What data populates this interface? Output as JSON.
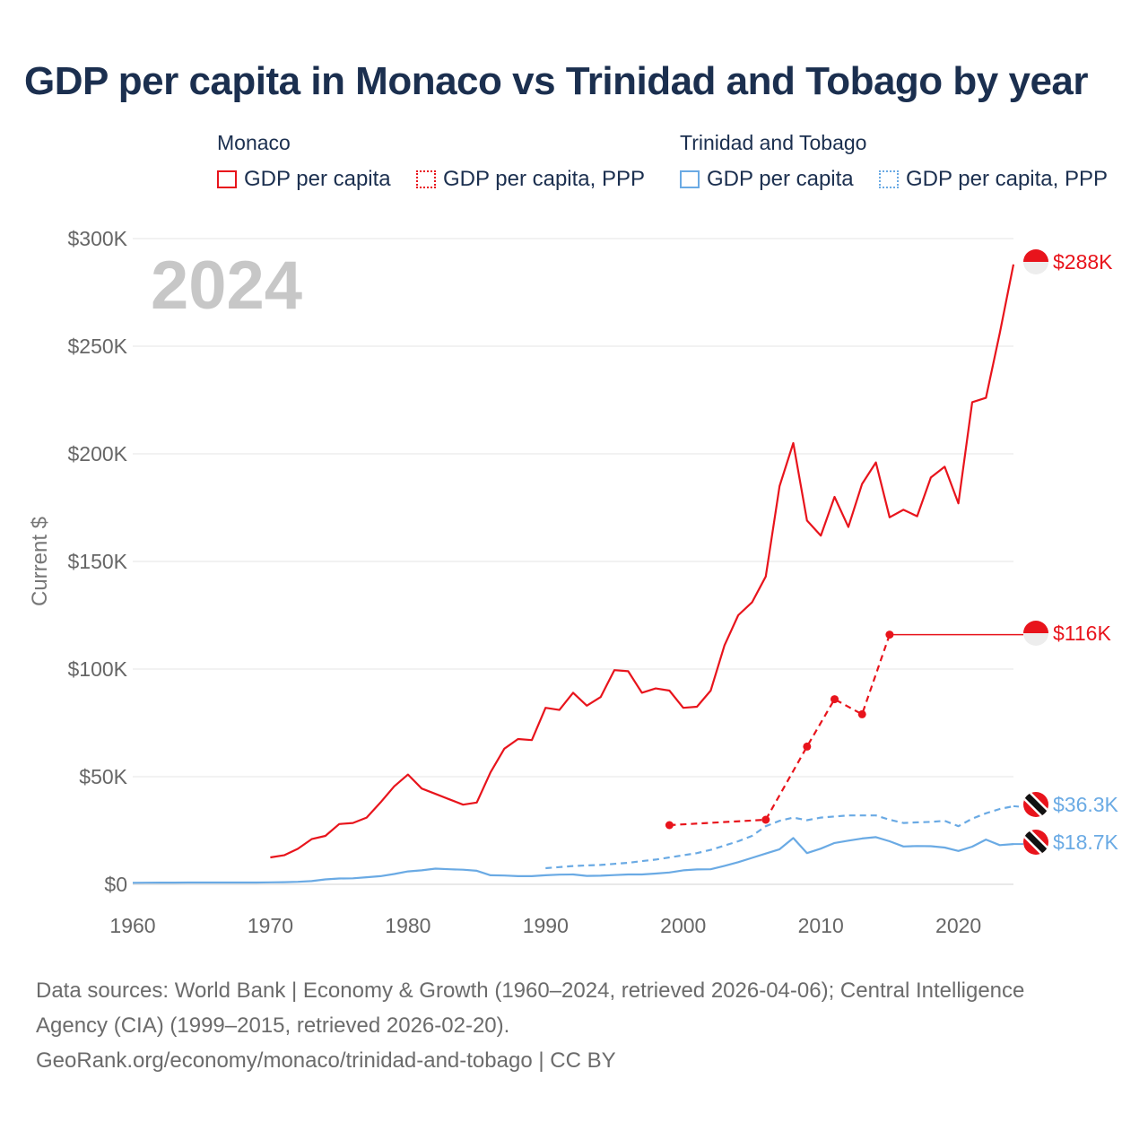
{
  "title": "GDP per capita in Monaco vs Trinidad and Tobago by year",
  "legend": {
    "groups": [
      {
        "title": "Monaco",
        "items": [
          {
            "label": "GDP per capita",
            "style": "solid",
            "color": "#e8141c"
          },
          {
            "label": "GDP per capita, PPP",
            "style": "dotted",
            "color": "#e8141c"
          }
        ]
      },
      {
        "title": "Trinidad and Tobago",
        "items": [
          {
            "label": "GDP per capita",
            "style": "solid",
            "color": "#6aaae4"
          },
          {
            "label": "GDP per capita, PPP",
            "style": "dotted",
            "color": "#6aaae4"
          }
        ]
      }
    ]
  },
  "year_label": "2024",
  "colors": {
    "monaco": "#e8141c",
    "tt": "#6aaae4",
    "grid": "#e6e6e6",
    "axis_text": "#666666",
    "year_label": "#c7c7c7"
  },
  "chart_data": {
    "type": "line",
    "ylabel": "Current $",
    "xlim": [
      1960,
      2024
    ],
    "ylim": [
      0,
      300000
    ],
    "x_ticks": [
      1960,
      1970,
      1980,
      1990,
      2000,
      2010,
      2020
    ],
    "x_tick_labels": [
      "1960",
      "1970",
      "1980",
      "1990",
      "2000",
      "2010",
      "2020"
    ],
    "y_ticks": [
      0,
      50000,
      100000,
      150000,
      200000,
      250000,
      300000
    ],
    "y_tick_labels": [
      "$0",
      "$50K",
      "$100K",
      "$150K",
      "$200K",
      "$250K",
      "$300K"
    ],
    "series": [
      {
        "name": "Monaco GDP per capita",
        "color": "#e8141c",
        "dash": "solid",
        "markers": false,
        "end_label": "$288K",
        "points": [
          [
            1970,
            12500
          ],
          [
            1971,
            13500
          ],
          [
            1972,
            16500
          ],
          [
            1973,
            21000
          ],
          [
            1974,
            22500
          ],
          [
            1975,
            28000
          ],
          [
            1976,
            28500
          ],
          [
            1977,
            31000
          ],
          [
            1978,
            38000
          ],
          [
            1979,
            45500
          ],
          [
            1980,
            51000
          ],
          [
            1981,
            44500
          ],
          [
            1982,
            42000
          ],
          [
            1983,
            39500
          ],
          [
            1984,
            37000
          ],
          [
            1985,
            38000
          ],
          [
            1986,
            52000
          ],
          [
            1987,
            63000
          ],
          [
            1988,
            67500
          ],
          [
            1989,
            67000
          ],
          [
            1990,
            82000
          ],
          [
            1991,
            81000
          ],
          [
            1992,
            89000
          ],
          [
            1993,
            83000
          ],
          [
            1994,
            87000
          ],
          [
            1995,
            99500
          ],
          [
            1996,
            99000
          ],
          [
            1997,
            89000
          ],
          [
            1998,
            91000
          ],
          [
            1999,
            90000
          ],
          [
            2000,
            82000
          ],
          [
            2001,
            82500
          ],
          [
            2002,
            90000
          ],
          [
            2003,
            111000
          ],
          [
            2004,
            125000
          ],
          [
            2005,
            131000
          ],
          [
            2006,
            143000
          ],
          [
            2007,
            185000
          ],
          [
            2008,
            205000
          ],
          [
            2009,
            169000
          ],
          [
            2010,
            162000
          ],
          [
            2011,
            180000
          ],
          [
            2012,
            166000
          ],
          [
            2013,
            186000
          ],
          [
            2014,
            196000
          ],
          [
            2015,
            170500
          ],
          [
            2016,
            174000
          ],
          [
            2017,
            171000
          ],
          [
            2018,
            189000
          ],
          [
            2019,
            194000
          ],
          [
            2020,
            177000
          ],
          [
            2021,
            224000
          ],
          [
            2022,
            226000
          ],
          [
            2023,
            256000
          ],
          [
            2024,
            288000
          ]
        ]
      },
      {
        "name": "Monaco GDP per capita, PPP",
        "color": "#e8141c",
        "dash": "dashed",
        "markers": true,
        "end_label": "$116K",
        "points": [
          [
            1999,
            27500
          ],
          [
            2006,
            30000
          ],
          [
            2009,
            64000
          ],
          [
            2011,
            86000
          ],
          [
            2013,
            79000
          ],
          [
            2015,
            116000
          ]
        ]
      },
      {
        "name": "Trinidad and Tobago GDP per capita, PPP",
        "color": "#6aaae4",
        "dash": "dashed",
        "markers": false,
        "end_label": "$36.3K",
        "points": [
          [
            1990,
            7500
          ],
          [
            1991,
            8000
          ],
          [
            1992,
            8500
          ],
          [
            1993,
            8800
          ],
          [
            1994,
            9000
          ],
          [
            1995,
            9500
          ],
          [
            1996,
            10000
          ],
          [
            1997,
            10800
          ],
          [
            1998,
            11500
          ],
          [
            1999,
            12500
          ],
          [
            2000,
            13500
          ],
          [
            2001,
            14500
          ],
          [
            2002,
            16000
          ],
          [
            2003,
            18000
          ],
          [
            2004,
            20000
          ],
          [
            2005,
            22500
          ],
          [
            2006,
            27000
          ],
          [
            2007,
            29500
          ],
          [
            2008,
            31000
          ],
          [
            2009,
            29800
          ],
          [
            2010,
            31000
          ],
          [
            2011,
            31500
          ],
          [
            2012,
            32000
          ],
          [
            2013,
            32000
          ],
          [
            2014,
            32000
          ],
          [
            2015,
            30000
          ],
          [
            2016,
            28500
          ],
          [
            2017,
            28800
          ],
          [
            2018,
            29000
          ],
          [
            2019,
            29500
          ],
          [
            2020,
            27000
          ],
          [
            2021,
            30500
          ],
          [
            2022,
            33000
          ],
          [
            2023,
            35000
          ],
          [
            2024,
            36300
          ]
        ]
      },
      {
        "name": "Trinidad and Tobago GDP per capita",
        "color": "#6aaae4",
        "dash": "solid",
        "markers": false,
        "end_label": "$18.7K",
        "points": [
          [
            1960,
            700
          ],
          [
            1961,
            750
          ],
          [
            1962,
            800
          ],
          [
            1963,
            800
          ],
          [
            1964,
            850
          ],
          [
            1965,
            850
          ],
          [
            1966,
            850
          ],
          [
            1967,
            850
          ],
          [
            1968,
            850
          ],
          [
            1969,
            850
          ],
          [
            1970,
            900
          ],
          [
            1971,
            1000
          ],
          [
            1972,
            1150
          ],
          [
            1973,
            1500
          ],
          [
            1974,
            2300
          ],
          [
            1975,
            2700
          ],
          [
            1976,
            2800
          ],
          [
            1977,
            3300
          ],
          [
            1978,
            3800
          ],
          [
            1979,
            4800
          ],
          [
            1980,
            6000
          ],
          [
            1981,
            6500
          ],
          [
            1982,
            7300
          ],
          [
            1983,
            7000
          ],
          [
            1984,
            6800
          ],
          [
            1985,
            6300
          ],
          [
            1986,
            4200
          ],
          [
            1987,
            4100
          ],
          [
            1988,
            3800
          ],
          [
            1989,
            3800
          ],
          [
            1990,
            4200
          ],
          [
            1991,
            4500
          ],
          [
            1992,
            4600
          ],
          [
            1993,
            3900
          ],
          [
            1994,
            4000
          ],
          [
            1995,
            4300
          ],
          [
            1996,
            4600
          ],
          [
            1997,
            4600
          ],
          [
            1998,
            5000
          ],
          [
            1999,
            5500
          ],
          [
            2000,
            6500
          ],
          [
            2001,
            6900
          ],
          [
            2002,
            7000
          ],
          [
            2003,
            8600
          ],
          [
            2004,
            10300
          ],
          [
            2005,
            12300
          ],
          [
            2006,
            14300
          ],
          [
            2007,
            16300
          ],
          [
            2008,
            21500
          ],
          [
            2009,
            14500
          ],
          [
            2010,
            16600
          ],
          [
            2011,
            19200
          ],
          [
            2012,
            20300
          ],
          [
            2013,
            21300
          ],
          [
            2014,
            21900
          ],
          [
            2015,
            20000
          ],
          [
            2016,
            17600
          ],
          [
            2017,
            17800
          ],
          [
            2018,
            17700
          ],
          [
            2019,
            17100
          ],
          [
            2020,
            15500
          ],
          [
            2021,
            17500
          ],
          [
            2022,
            20800
          ],
          [
            2023,
            18200
          ],
          [
            2024,
            18700
          ]
        ]
      }
    ],
    "flags": [
      {
        "series": 0,
        "country": "monaco"
      },
      {
        "series": 1,
        "country": "monaco"
      },
      {
        "series": 2,
        "country": "tt"
      },
      {
        "series": 3,
        "country": "tt"
      }
    ]
  },
  "footer": {
    "line1": "Data sources: World Bank | Economy & Growth (1960–2024, retrieved 2026-04-06); Central Intelligence",
    "line2": "Agency (CIA) (1999–2015, retrieved 2026-02-20).",
    "line3": "GeoRank.org/economy/monaco/trinidad-and-tobago | CC BY"
  }
}
